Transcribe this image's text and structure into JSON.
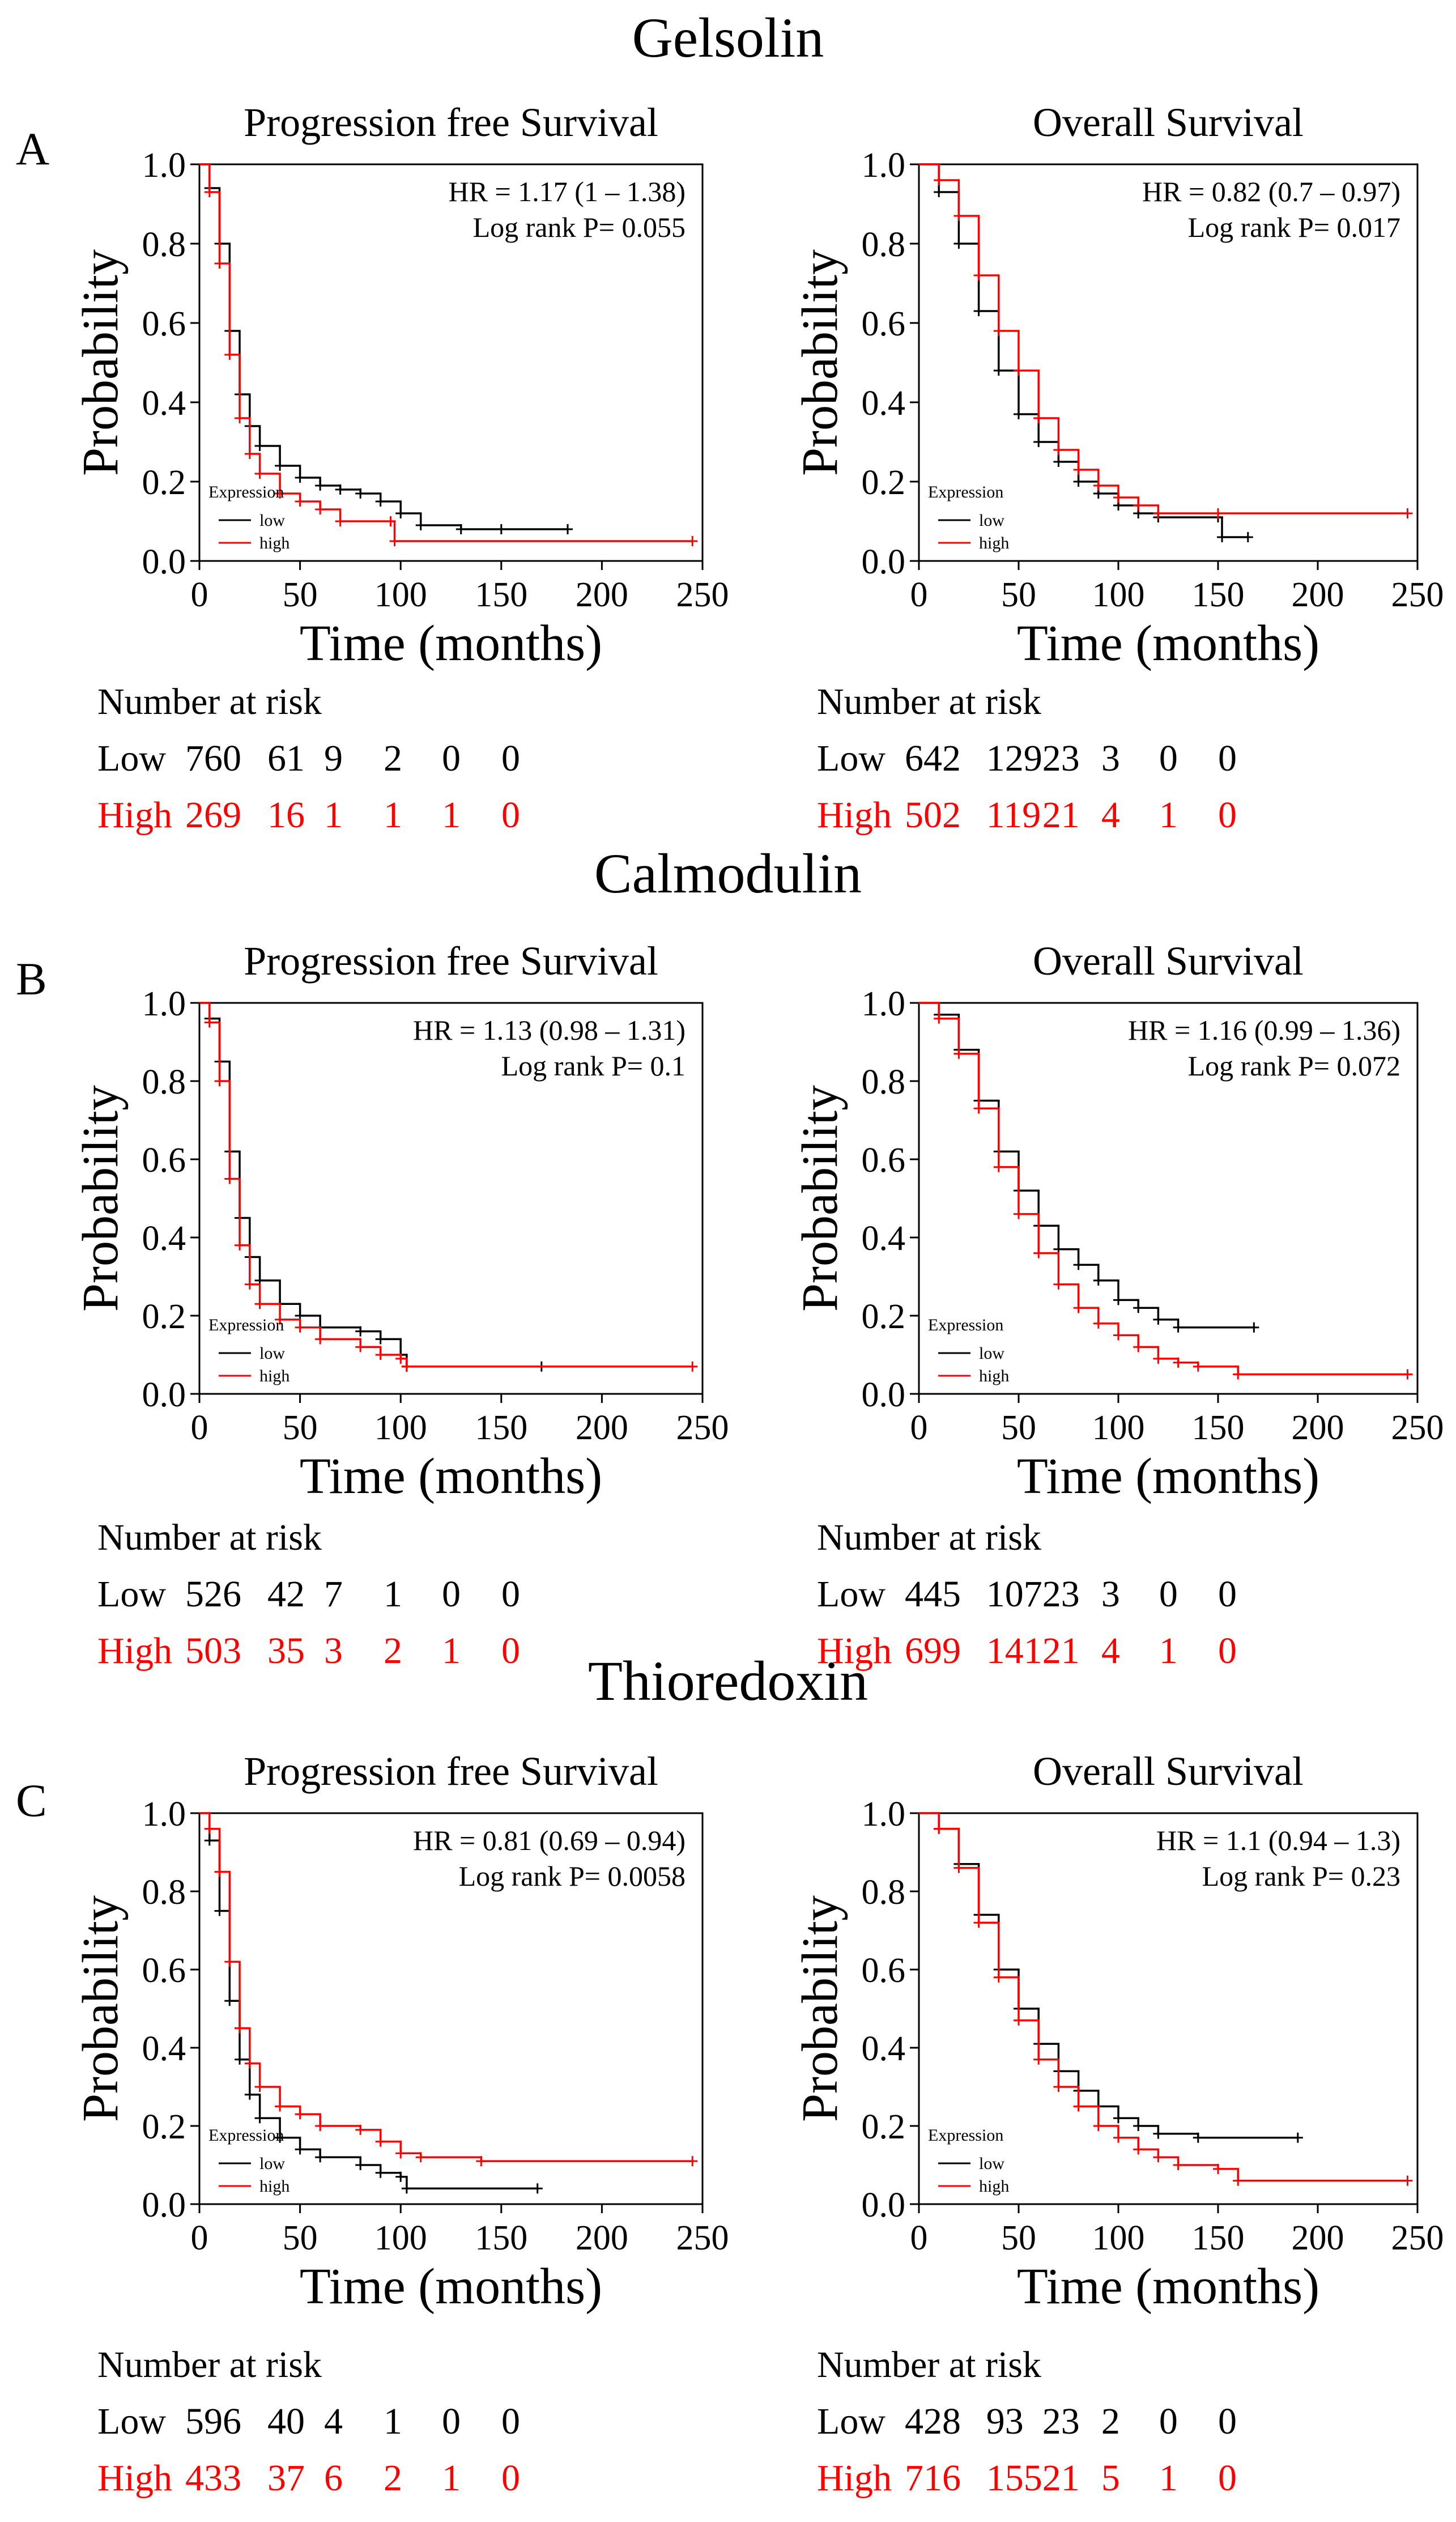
{
  "colors": {
    "low": "#000000",
    "high": "#ff0000",
    "axis": "#000000"
  },
  "chart_data": [
    {
      "type": "line",
      "gene": "Gelsolin",
      "panel_label": "A",
      "title": "Progression free Survival",
      "xlabel": "Time (months)",
      "ylabel": "Probability",
      "xlim": [
        0,
        250
      ],
      "ylim": [
        0,
        1.0
      ],
      "xticks": [
        "0",
        "50",
        "100",
        "150",
        "200",
        "250"
      ],
      "yticks": [
        "0.0",
        "0.2",
        "0.4",
        "0.6",
        "0.8",
        "1.0"
      ],
      "hr_text": "HR = 1.17 (1 – 1.38)",
      "p_text": "Log rank P= 0.055",
      "legend": {
        "title": "Expression",
        "low": "low",
        "high": "high"
      },
      "series": [
        {
          "name": "low",
          "color": "#000000",
          "t": [
            0,
            5,
            10,
            15,
            20,
            25,
            30,
            40,
            50,
            60,
            70,
            80,
            90,
            100,
            110,
            130,
            150,
            183
          ],
          "s": [
            1.0,
            0.94,
            0.8,
            0.58,
            0.42,
            0.34,
            0.29,
            0.24,
            0.21,
            0.19,
            0.18,
            0.17,
            0.15,
            0.12,
            0.09,
            0.08,
            0.08,
            0.08
          ]
        },
        {
          "name": "high",
          "color": "#ff0000",
          "t": [
            0,
            5,
            10,
            15,
            20,
            25,
            30,
            40,
            50,
            60,
            70,
            95,
            97,
            245
          ],
          "s": [
            1.0,
            0.93,
            0.75,
            0.52,
            0.36,
            0.27,
            0.22,
            0.17,
            0.15,
            0.13,
            0.1,
            0.1,
            0.05,
            0.05
          ]
        }
      ],
      "risk": {
        "header": "Number at risk",
        "low_label": "Low",
        "high_label": "High",
        "low": [
          "760",
          "61",
          "9",
          "2",
          "0",
          "0"
        ],
        "high": [
          "269",
          "16",
          "1",
          "1",
          "1",
          "0"
        ]
      }
    },
    {
      "type": "line",
      "gene": "Gelsolin",
      "panel_label": "",
      "title": "Overall Survival",
      "xlabel": "Time (months)",
      "ylabel": "Probability",
      "xlim": [
        0,
        250
      ],
      "ylim": [
        0,
        1.0
      ],
      "xticks": [
        "0",
        "50",
        "100",
        "150",
        "200",
        "250"
      ],
      "yticks": [
        "0.0",
        "0.2",
        "0.4",
        "0.6",
        "0.8",
        "1.0"
      ],
      "hr_text": "HR = 0.82 (0.7 – 0.97)",
      "p_text": "Log rank P= 0.017",
      "legend": {
        "title": "Expression",
        "low": "low",
        "high": "high"
      },
      "series": [
        {
          "name": "low",
          "color": "#000000",
          "t": [
            0,
            10,
            20,
            30,
            40,
            50,
            60,
            70,
            80,
            90,
            100,
            110,
            120,
            150,
            152,
            165
          ],
          "s": [
            1.0,
            0.93,
            0.8,
            0.63,
            0.48,
            0.37,
            0.3,
            0.25,
            0.2,
            0.17,
            0.14,
            0.12,
            0.11,
            0.11,
            0.06,
            0.06
          ]
        },
        {
          "name": "high",
          "color": "#ff0000",
          "t": [
            0,
            10,
            20,
            30,
            40,
            50,
            60,
            70,
            80,
            90,
            100,
            110,
            120,
            150,
            245
          ],
          "s": [
            1.0,
            0.96,
            0.87,
            0.72,
            0.58,
            0.48,
            0.36,
            0.28,
            0.23,
            0.19,
            0.16,
            0.14,
            0.12,
            0.12,
            0.12
          ]
        }
      ],
      "risk": {
        "header": "Number at risk",
        "low_label": "Low",
        "high_label": "High",
        "low": [
          "642",
          "129",
          "23",
          "3",
          "0",
          "0"
        ],
        "high": [
          "502",
          "119",
          "21",
          "4",
          "1",
          "0"
        ]
      }
    },
    {
      "type": "line",
      "gene": "Calmodulin",
      "panel_label": "B",
      "title": "Progression free Survival",
      "xlabel": "Time (months)",
      "ylabel": "Probability",
      "xlim": [
        0,
        250
      ],
      "ylim": [
        0,
        1.0
      ],
      "xticks": [
        "0",
        "50",
        "100",
        "150",
        "200",
        "250"
      ],
      "yticks": [
        "0.0",
        "0.2",
        "0.4",
        "0.6",
        "0.8",
        "1.0"
      ],
      "hr_text": "HR = 1.13 (0.98 – 1.31)",
      "p_text": "Log rank P= 0.1",
      "legend": {
        "title": "Expression",
        "low": "low",
        "high": "high"
      },
      "series": [
        {
          "name": "low",
          "color": "#000000",
          "t": [
            0,
            5,
            10,
            15,
            20,
            25,
            30,
            40,
            50,
            60,
            80,
            90,
            100,
            103,
            170
          ],
          "s": [
            1.0,
            0.96,
            0.85,
            0.62,
            0.45,
            0.35,
            0.29,
            0.23,
            0.2,
            0.17,
            0.16,
            0.14,
            0.1,
            0.07,
            0.07
          ]
        },
        {
          "name": "high",
          "color": "#ff0000",
          "t": [
            0,
            5,
            10,
            15,
            20,
            25,
            30,
            40,
            50,
            60,
            80,
            90,
            100,
            103,
            245
          ],
          "s": [
            1.0,
            0.95,
            0.8,
            0.55,
            0.38,
            0.28,
            0.23,
            0.19,
            0.17,
            0.14,
            0.12,
            0.1,
            0.09,
            0.07,
            0.07
          ]
        }
      ],
      "risk": {
        "header": "Number at risk",
        "low_label": "Low",
        "high_label": "High",
        "low": [
          "526",
          "42",
          "7",
          "1",
          "0",
          "0"
        ],
        "high": [
          "503",
          "35",
          "3",
          "2",
          "1",
          "0"
        ]
      }
    },
    {
      "type": "line",
      "gene": "Calmodulin",
      "panel_label": "",
      "title": "Overall Survival",
      "xlabel": "Time (months)",
      "ylabel": "Probability",
      "xlim": [
        0,
        250
      ],
      "ylim": [
        0,
        1.0
      ],
      "xticks": [
        "0",
        "50",
        "100",
        "150",
        "200",
        "250"
      ],
      "yticks": [
        "0.0",
        "0.2",
        "0.4",
        "0.6",
        "0.8",
        "1.0"
      ],
      "hr_text": "HR = 1.16 (0.99 – 1.36)",
      "p_text": "Log rank P= 0.072",
      "legend": {
        "title": "Expression",
        "low": "low",
        "high": "high"
      },
      "series": [
        {
          "name": "low",
          "color": "#000000",
          "t": [
            0,
            10,
            20,
            30,
            40,
            50,
            60,
            70,
            80,
            90,
            100,
            110,
            120,
            130,
            168
          ],
          "s": [
            1.0,
            0.97,
            0.88,
            0.75,
            0.62,
            0.52,
            0.43,
            0.37,
            0.33,
            0.29,
            0.24,
            0.22,
            0.19,
            0.17,
            0.17
          ]
        },
        {
          "name": "high",
          "color": "#ff0000",
          "t": [
            0,
            10,
            20,
            30,
            40,
            50,
            60,
            70,
            80,
            90,
            100,
            110,
            120,
            130,
            140,
            160,
            245
          ],
          "s": [
            1.0,
            0.96,
            0.87,
            0.73,
            0.58,
            0.46,
            0.36,
            0.28,
            0.22,
            0.18,
            0.15,
            0.12,
            0.09,
            0.08,
            0.07,
            0.05,
            0.05
          ]
        }
      ],
      "risk": {
        "header": "Number at risk",
        "low_label": "Low",
        "high_label": "High",
        "low": [
          "445",
          "107",
          "23",
          "3",
          "0",
          "0"
        ],
        "high": [
          "699",
          "141",
          "21",
          "4",
          "1",
          "0"
        ]
      }
    },
    {
      "type": "line",
      "gene": "Thioredoxin",
      "panel_label": "C",
      "title": "Progression free Survival",
      "xlabel": "Time (months)",
      "ylabel": "Probability",
      "xlim": [
        0,
        250
      ],
      "ylim": [
        0,
        1.0
      ],
      "xticks": [
        "0",
        "50",
        "100",
        "150",
        "200",
        "250"
      ],
      "yticks": [
        "0.0",
        "0.2",
        "0.4",
        "0.6",
        "0.8",
        "1.0"
      ],
      "hr_text": "HR = 0.81 (0.69 – 0.94)",
      "p_text": "Log rank P= 0.0058",
      "legend": {
        "title": "Expression",
        "low": "low",
        "high": "high"
      },
      "series": [
        {
          "name": "low",
          "color": "#000000",
          "t": [
            0,
            5,
            10,
            15,
            20,
            25,
            30,
            40,
            50,
            60,
            80,
            90,
            100,
            103,
            168
          ],
          "s": [
            1.0,
            0.93,
            0.75,
            0.52,
            0.37,
            0.28,
            0.22,
            0.17,
            0.14,
            0.12,
            0.1,
            0.08,
            0.07,
            0.04,
            0.04
          ]
        },
        {
          "name": "high",
          "color": "#ff0000",
          "t": [
            0,
            5,
            10,
            15,
            20,
            25,
            30,
            40,
            50,
            60,
            80,
            90,
            100,
            110,
            140,
            245
          ],
          "s": [
            1.0,
            0.96,
            0.85,
            0.62,
            0.45,
            0.36,
            0.3,
            0.25,
            0.23,
            0.2,
            0.19,
            0.16,
            0.13,
            0.12,
            0.11,
            0.11
          ]
        }
      ],
      "risk": {
        "header": "Number at risk",
        "low_label": "Low",
        "high_label": "High",
        "low": [
          "596",
          "40",
          "4",
          "1",
          "0",
          "0"
        ],
        "high": [
          "433",
          "37",
          "6",
          "2",
          "1",
          "0"
        ]
      }
    },
    {
      "type": "line",
      "gene": "Thioredoxin",
      "panel_label": "",
      "title": "Overall Survival",
      "xlabel": "Time (months)",
      "ylabel": "Probability",
      "xlim": [
        0,
        250
      ],
      "ylim": [
        0,
        1.0
      ],
      "xticks": [
        "0",
        "50",
        "100",
        "150",
        "200",
        "250"
      ],
      "yticks": [
        "0.0",
        "0.2",
        "0.4",
        "0.6",
        "0.8",
        "1.0"
      ],
      "hr_text": "HR = 1.1 (0.94 – 1.3)",
      "p_text": "Log rank P= 0.23",
      "legend": {
        "title": "Expression",
        "low": "low",
        "high": "high"
      },
      "series": [
        {
          "name": "low",
          "color": "#000000",
          "t": [
            0,
            10,
            20,
            30,
            40,
            50,
            60,
            70,
            80,
            90,
            100,
            110,
            120,
            140,
            190
          ],
          "s": [
            1.0,
            0.96,
            0.87,
            0.74,
            0.6,
            0.5,
            0.41,
            0.34,
            0.29,
            0.25,
            0.22,
            0.2,
            0.18,
            0.17,
            0.17
          ]
        },
        {
          "name": "high",
          "color": "#ff0000",
          "t": [
            0,
            10,
            20,
            30,
            40,
            50,
            60,
            70,
            80,
            90,
            100,
            110,
            120,
            130,
            150,
            160,
            245
          ],
          "s": [
            1.0,
            0.96,
            0.86,
            0.72,
            0.58,
            0.47,
            0.37,
            0.3,
            0.25,
            0.2,
            0.17,
            0.14,
            0.12,
            0.1,
            0.09,
            0.06,
            0.06
          ]
        }
      ],
      "risk": {
        "header": "Number at risk",
        "low_label": "Low",
        "high_label": "High",
        "low": [
          "428",
          "93",
          "23",
          "2",
          "0",
          "0"
        ],
        "high": [
          "716",
          "155",
          "21",
          "5",
          "1",
          "0"
        ]
      }
    }
  ]
}
